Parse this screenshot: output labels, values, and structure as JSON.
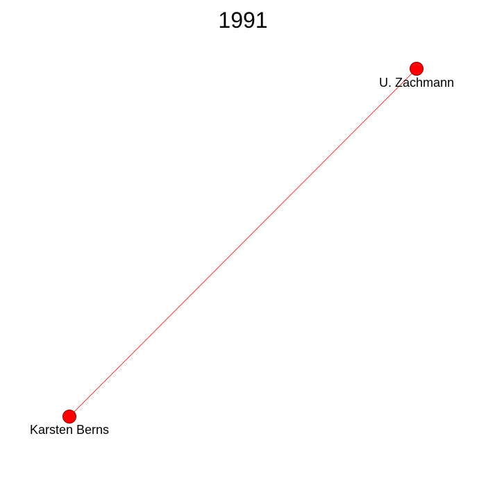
{
  "title": "1991",
  "node_color": "#ff0000",
  "node_stroke": "#8b0000",
  "edge_color": "#ff0000",
  "nodes": [
    {
      "id": "zachmann",
      "label": "U. Zachmann"
    },
    {
      "id": "berns",
      "label": "Karsten Berns"
    }
  ],
  "edges": [
    {
      "from": "berns",
      "to": "zachmann"
    }
  ]
}
